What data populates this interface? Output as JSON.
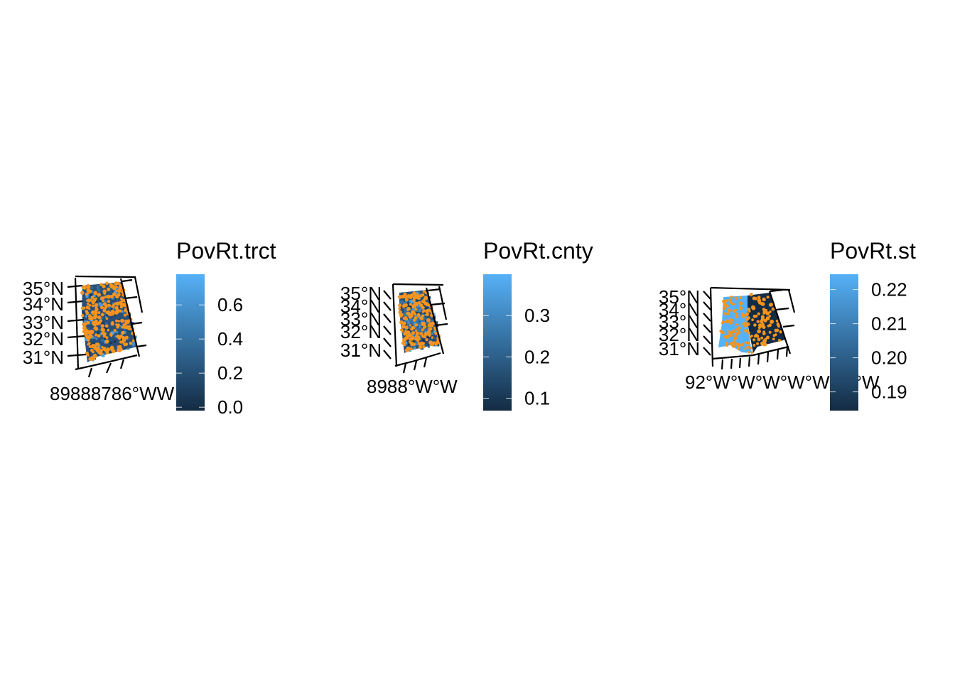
{
  "colors": {
    "low": "#132B43",
    "high": "#56B1F7",
    "point": "#F7941D",
    "graticule": "#000000"
  },
  "panels": [
    {
      "id": "trct",
      "legend_title": "PovRt.trct",
      "lat_labels": [
        "35°N",
        "34°N",
        "33°N",
        "32°N",
        "31°N"
      ],
      "lon_labels": [
        "89°W",
        "88°W",
        "87°W",
        "86°W",
        "85°W"
      ],
      "lon_label_text": "89888786°WW",
      "legend_labels": [
        "0.6",
        "0.4",
        "0.2",
        "0.0"
      ],
      "legend_values": [
        0.6,
        0.4,
        0.2,
        0.0
      ],
      "scale_range": [
        -0.02,
        0.78
      ]
    },
    {
      "id": "cnty",
      "legend_title": "PovRt.cnty",
      "lat_labels": [
        "35°N",
        "34°N",
        "33°N",
        "32°N",
        "31°N"
      ],
      "lon_labels": [
        "89°W",
        "88°W",
        "87°W",
        "86°W",
        "85°W"
      ],
      "lon_label_text": "8988°W°W",
      "legend_labels": [
        "0.3",
        "0.2",
        "0.1"
      ],
      "legend_values": [
        0.3,
        0.2,
        0.1
      ],
      "scale_range": [
        0.07,
        0.4
      ]
    },
    {
      "id": "st",
      "legend_title": "PovRt.st",
      "lat_labels": [
        "35°N",
        "34°N",
        "33°N",
        "32°N",
        "31°N"
      ],
      "lon_labels": [
        "92°W",
        "91°W",
        "90°W",
        "89°W",
        "88°W",
        "87°W",
        "86°W",
        "85°W"
      ],
      "lon_label_text": "92°W°W°W°W°W°W°W",
      "legend_labels": [
        "0.22",
        "0.21",
        "0.20",
        "0.19"
      ],
      "legend_values": [
        0.22,
        0.21,
        0.2,
        0.19
      ],
      "scale_range": [
        0.1845,
        0.2245
      ]
    }
  ]
}
